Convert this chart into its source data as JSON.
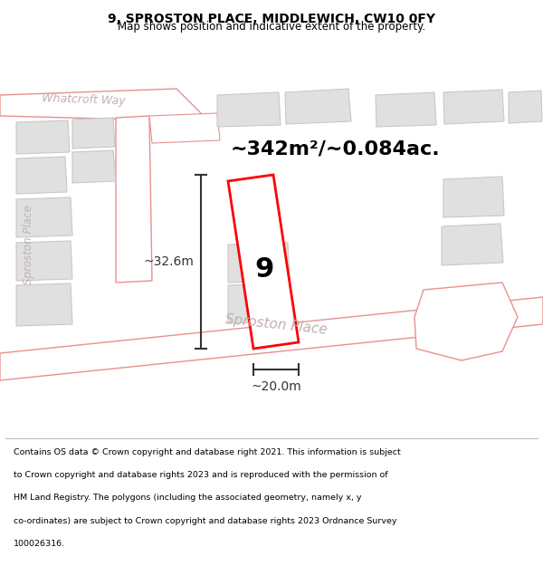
{
  "title": "9, SPROSTON PLACE, MIDDLEWICH, CW10 0FY",
  "subtitle": "Map shows position and indicative extent of the property.",
  "area_text": "~342m²/~0.084ac.",
  "number_label": "9",
  "dim_width": "~20.0m",
  "dim_height": "~32.6m",
  "bg_color": "#f2f2f2",
  "road_fill": "#ffffff",
  "road_stroke": "#e89090",
  "building_fill": "#e0e0e0",
  "building_stroke": "#c8c8c8",
  "highlight_stroke": "#ff0000",
  "dim_color": "#333333",
  "road_label_color": "#c0b0b0",
  "footer_lines": [
    "Contains OS data © Crown copyright and database right 2021. This information is subject",
    "to Crown copyright and database rights 2023 and is reproduced with the permission of",
    "HM Land Registry. The polygons (including the associated geometry, namely x, y",
    "co-ordinates) are subject to Crown copyright and database rights 2023 Ordnance Survey",
    "100026316."
  ]
}
